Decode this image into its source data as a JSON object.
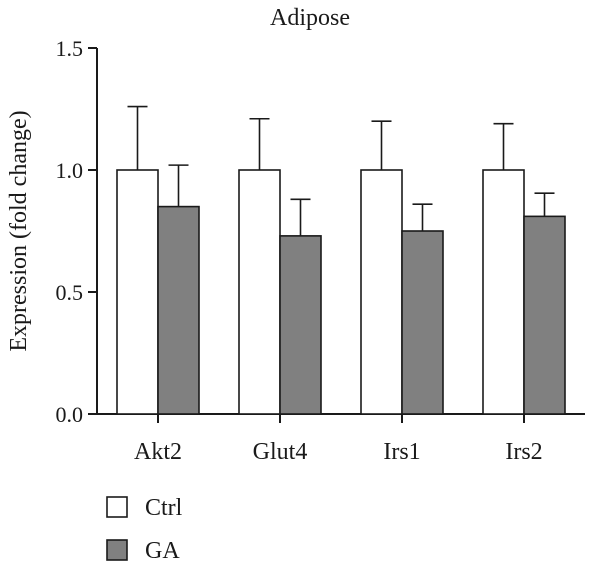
{
  "chart_data": {
    "type": "bar",
    "title": "Adipose",
    "ylabel": "Expression (fold change)",
    "xlabel": "",
    "ylim": [
      0,
      1.5
    ],
    "yticks": [
      "0.0",
      "0.5",
      "1.0",
      "1.5"
    ],
    "ytick_values": [
      0,
      0.5,
      1.0,
      1.5
    ],
    "categories": [
      "Akt2",
      "Glut4",
      "Irs1",
      "Irs2"
    ],
    "series": [
      {
        "name": "Ctrl",
        "color": "#ffffff",
        "values": [
          1.0,
          1.0,
          1.0,
          1.0
        ],
        "errors": [
          0.26,
          0.21,
          0.2,
          0.19
        ]
      },
      {
        "name": "GA",
        "color": "#808080",
        "values": [
          0.85,
          0.73,
          0.75,
          0.81
        ],
        "errors": [
          0.17,
          0.15,
          0.11,
          0.095
        ]
      }
    ],
    "legend_position": "bottom-left",
    "grid": false
  }
}
